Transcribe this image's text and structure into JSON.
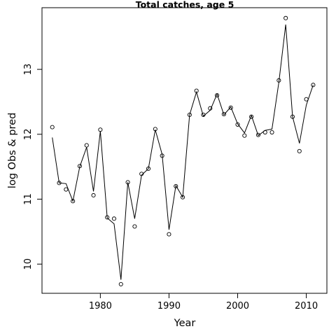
{
  "chart_data": {
    "type": "scatter",
    "title": "Total catches, age 5",
    "xlabel": "Year",
    "ylabel": "log Obs & pred",
    "xlim": [
      1971.5,
      2013.0
    ],
    "ylim": [
      9.55,
      13.95
    ],
    "x_ticks": [
      1980,
      1990,
      2000,
      2010
    ],
    "y_ticks": [
      10,
      11,
      12,
      13
    ],
    "grid": false,
    "legend": "none",
    "x": [
      1973,
      1974,
      1975,
      1976,
      1977,
      1978,
      1979,
      1980,
      1981,
      1982,
      1983,
      1984,
      1985,
      1986,
      1987,
      1988,
      1989,
      1990,
      1991,
      1992,
      1993,
      1994,
      1995,
      1996,
      1997,
      1998,
      1999,
      2000,
      2001,
      2002,
      2003,
      2004,
      2005,
      2006,
      2007,
      2008,
      2009,
      2010,
      2011
    ],
    "series": [
      {
        "style": "points",
        "values": [
          12.11,
          11.25,
          11.15,
          10.97,
          11.51,
          11.83,
          11.06,
          12.07,
          10.72,
          10.7,
          9.69,
          11.26,
          10.58,
          11.39,
          11.47,
          12.08,
          11.67,
          10.46,
          11.2,
          11.03,
          12.3,
          12.67,
          12.3,
          12.4,
          12.6,
          12.31,
          12.41,
          12.15,
          11.98,
          12.27,
          11.99,
          12.03,
          12.03,
          12.83,
          13.79,
          12.27,
          11.74,
          12.54,
          12.76
        ]
      },
      {
        "style": "line",
        "values": [
          11.95,
          11.25,
          11.24,
          10.97,
          11.5,
          11.8,
          11.12,
          12.05,
          10.71,
          10.62,
          9.76,
          11.26,
          10.7,
          11.37,
          11.47,
          12.07,
          11.69,
          10.53,
          11.21,
          11.03,
          12.3,
          12.65,
          12.28,
          12.37,
          12.62,
          12.3,
          12.42,
          12.16,
          12.02,
          12.29,
          11.98,
          12.06,
          12.08,
          12.8,
          13.69,
          12.27,
          11.86,
          12.45,
          12.76
        ]
      }
    ]
  }
}
